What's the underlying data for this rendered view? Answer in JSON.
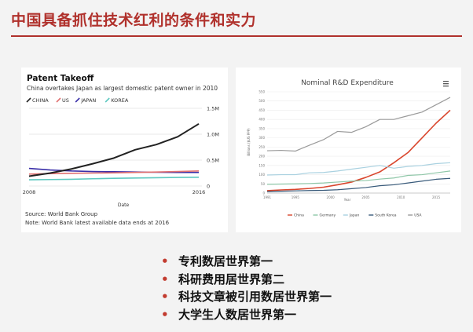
{
  "slide": {
    "title": "中国具备抓住技术红利的条件和实力",
    "bullets": [
      "专利数居世界第一",
      "科研费用居世界第二",
      "科技文章被引用数居世界第一",
      "大学生人数居世界第一"
    ],
    "bullet_symbol": "•",
    "accent_color": "#b0312c"
  },
  "chart_data": [
    {
      "type": "line",
      "title": "Patent Takeoff",
      "subtitle": "China overtakes Japan as largest domestic patent owner in 2010",
      "xlabel": "Date",
      "ylabel": "",
      "x": [
        2008,
        2009,
        2010,
        2011,
        2012,
        2013,
        2014,
        2015,
        2016
      ],
      "x_ticks": [
        "2008",
        "2016"
      ],
      "y_ticks": [
        "0",
        "0.5M",
        "1.0M",
        "1.5M"
      ],
      "ylim": [
        0,
        1500000
      ],
      "legend_position": "top-left",
      "series": [
        {
          "name": "CHINA",
          "color": "#222222",
          "values": [
            190000,
            250000,
            330000,
            430000,
            540000,
            700000,
            800000,
            950000,
            1200000
          ]
        },
        {
          "name": "US",
          "color": "#e07070",
          "values": [
            230000,
            240000,
            245000,
            250000,
            255000,
            262000,
            270000,
            280000,
            290000
          ]
        },
        {
          "name": "JAPAN",
          "color": "#3a2fa8",
          "values": [
            340000,
            310000,
            290000,
            280000,
            275000,
            270000,
            265000,
            262000,
            262000
          ]
        },
        {
          "name": "KOREA",
          "color": "#5cc8c0",
          "values": [
            120000,
            125000,
            130000,
            140000,
            148000,
            155000,
            160000,
            165000,
            170000
          ]
        }
      ],
      "source": "Source: World Bank Group",
      "note": "Note: World Bank latest available data ends at 2016"
    },
    {
      "type": "line",
      "title": "Nominal R&D Expenditure",
      "xlabel": "Year",
      "ylabel": "Billions ($US PPP)",
      "x": [
        1991,
        1993,
        1995,
        1997,
        1999,
        2001,
        2003,
        2005,
        2007,
        2009,
        2011,
        2013,
        2015,
        2017
      ],
      "x_ticks": [
        "1991",
        "1995",
        "2000",
        "2005",
        "2010",
        "2015"
      ],
      "y_ticks": [
        "0",
        "50",
        "100",
        "150",
        "200",
        "250",
        "300",
        "350",
        "400",
        "450",
        "500",
        "550"
      ],
      "ylim": [
        0,
        550
      ],
      "legend_position": "bottom",
      "series": [
        {
          "name": "China",
          "color": "#d9462d",
          "values": [
            13,
            17,
            20,
            25,
            32,
            45,
            60,
            85,
            115,
            165,
            220,
            300,
            380,
            450
          ]
        },
        {
          "name": "Germany",
          "color": "#8fc7a8",
          "values": [
            48,
            49,
            50,
            52,
            55,
            60,
            65,
            68,
            76,
            82,
            96,
            100,
            110,
            120
          ]
        },
        {
          "name": "Japan",
          "color": "#a9d1e0",
          "values": [
            98,
            100,
            100,
            110,
            112,
            120,
            130,
            140,
            150,
            135,
            145,
            150,
            160,
            165
          ]
        },
        {
          "name": "South Korea",
          "color": "#385a7a",
          "values": [
            8,
            10,
            12,
            14,
            15,
            18,
            24,
            30,
            40,
            45,
            55,
            65,
            75,
            80
          ]
        },
        {
          "name": "USA",
          "color": "#9a9a9a",
          "values": [
            230,
            232,
            228,
            260,
            290,
            335,
            330,
            360,
            400,
            400,
            420,
            440,
            480,
            520
          ]
        }
      ],
      "menu_icon": "hamburger-icon"
    }
  ]
}
